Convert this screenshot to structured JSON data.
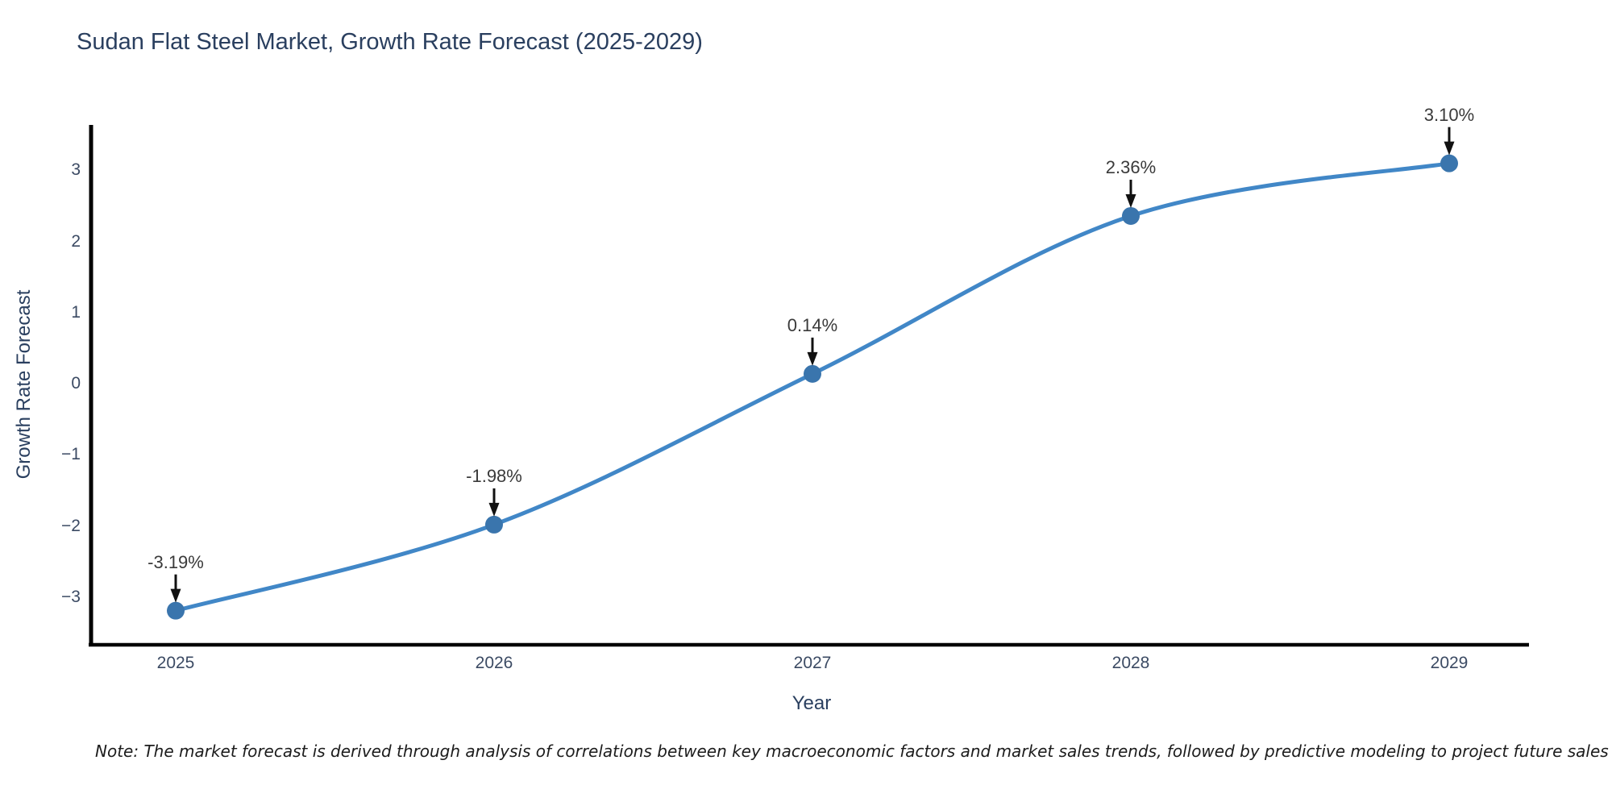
{
  "chart_data": {
    "type": "line",
    "title": "Sudan Flat Steel Market, Growth Rate Forecast (2025-2029)",
    "xlabel": "Year",
    "ylabel": "Growth Rate Forecast",
    "x": [
      2025,
      2026,
      2027,
      2028,
      2029
    ],
    "x_tick_labels": [
      "2025",
      "2026",
      "2027",
      "2028",
      "2029"
    ],
    "y": [
      -3.19,
      -1.98,
      0.14,
      2.36,
      3.1
    ],
    "point_labels": [
      "-3.19%",
      "-1.98%",
      "0.14%",
      "2.36%",
      "3.10%"
    ],
    "yticks": [
      -3,
      -2,
      -1,
      0,
      1,
      2,
      3
    ],
    "ytick_labels": [
      "−3",
      "−2",
      "−1",
      "0",
      "1",
      "2",
      "3"
    ],
    "ylim": [
      -3.67,
      3.64
    ],
    "line_shape": "spline",
    "grid": false,
    "legend": false,
    "colors": {
      "line": "#4187c7",
      "marker": "#3a75ad",
      "axis_spine": "#000000",
      "annotation_arrow": "#111111",
      "title_text": "#2a3f5f",
      "tick_text": "#3b4a63",
      "annotation_text": "#3a3a3a"
    }
  },
  "footnote": "Note: The market forecast is derived through analysis of correlations between key macroeconomic factors and market sales trends, followed by predictive modeling to project future sales"
}
